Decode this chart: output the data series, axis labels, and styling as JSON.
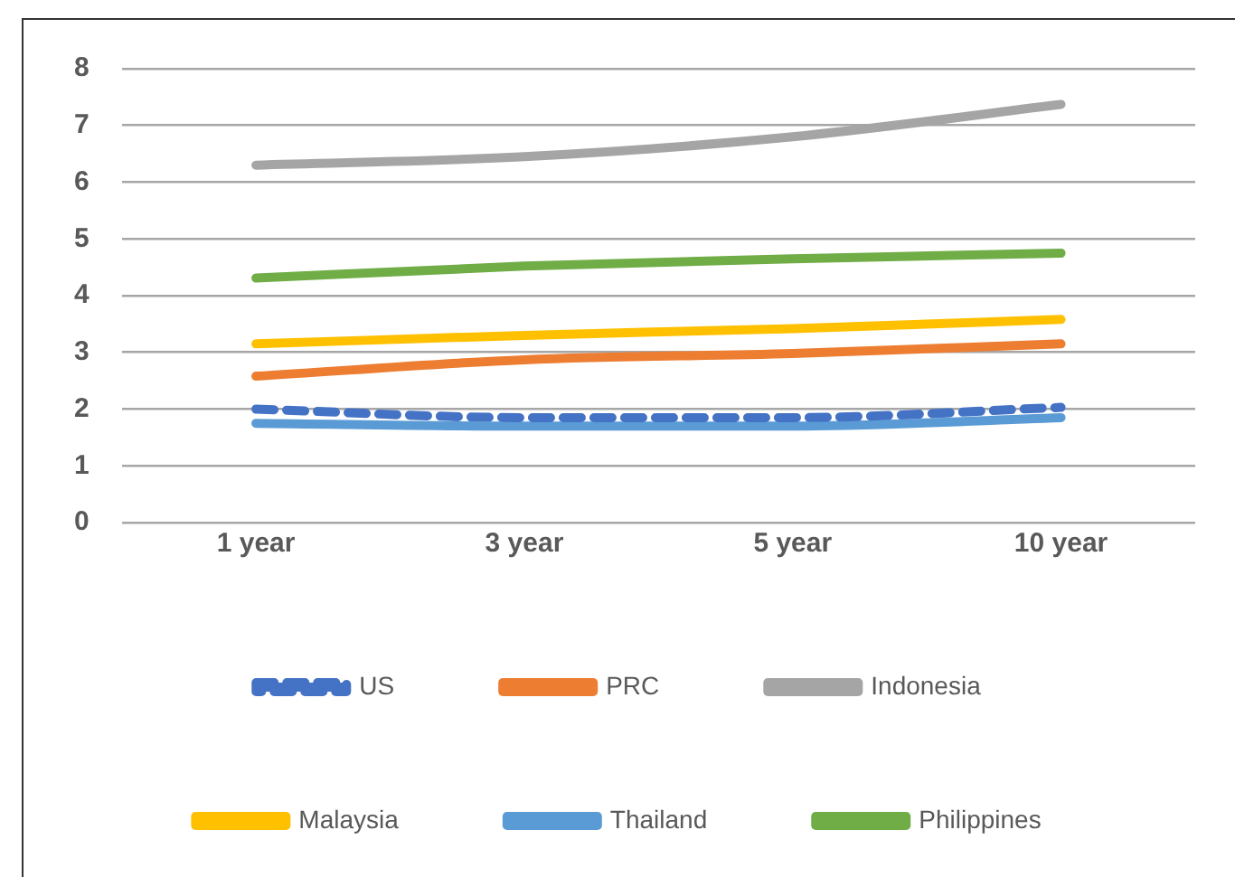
{
  "chart_data": {
    "type": "line",
    "categories": [
      "1 year",
      "3 year",
      "5 year",
      "10 year"
    ],
    "series": [
      {
        "name": "US",
        "color": "#4472c4",
        "values": [
          2.0,
          1.85,
          1.85,
          2.03
        ],
        "line_style": "dashed"
      },
      {
        "name": "PRC",
        "color": "#ed7d31",
        "values": [
          2.58,
          2.87,
          2.98,
          3.15
        ]
      },
      {
        "name": "Indonesia",
        "color": "#a5a5a5",
        "values": [
          6.3,
          6.45,
          6.8,
          7.37
        ]
      },
      {
        "name": "Malaysia",
        "color": "#ffc000",
        "values": [
          3.15,
          3.3,
          3.42,
          3.58
        ]
      },
      {
        "name": "Thailand",
        "color": "#5b9bd5",
        "values": [
          1.75,
          1.7,
          1.7,
          1.85
        ]
      },
      {
        "name": "Philippines",
        "color": "#70ad47",
        "values": [
          4.31,
          4.52,
          4.65,
          4.75
        ]
      }
    ],
    "ylim": [
      0,
      8
    ],
    "yticks": [
      0,
      1,
      2,
      3,
      4,
      5,
      6,
      7,
      8
    ],
    "grid": "y",
    "legend": "bottom",
    "marker": "none",
    "line_style": "solid"
  }
}
